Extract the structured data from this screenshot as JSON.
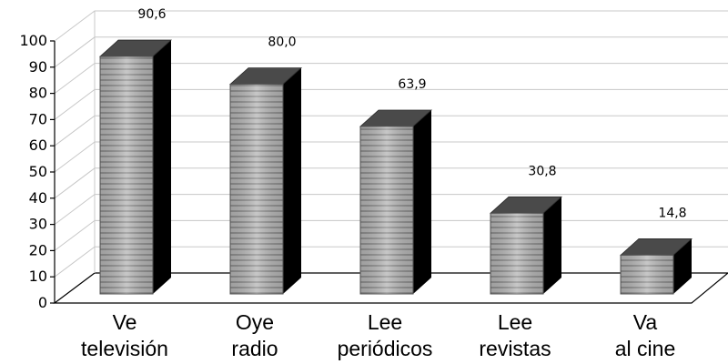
{
  "chart_data": {
    "type": "bar",
    "title": "",
    "xlabel": "",
    "ylabel": "",
    "ylim": [
      0,
      100
    ],
    "yticks": [
      0,
      10,
      20,
      30,
      40,
      50,
      60,
      70,
      80,
      90,
      100
    ],
    "grid": true,
    "style": "3d-column",
    "categories": [
      {
        "line1": "Ve",
        "line2": "televisión"
      },
      {
        "line1": "Oye",
        "line2": "radio"
      },
      {
        "line1": "Lee",
        "line2": "periódicos"
      },
      {
        "line1": "Lee",
        "line2": "revistas"
      },
      {
        "line1": "Va",
        "line2": "al cine"
      }
    ],
    "values": [
      90.6,
      80.0,
      63.9,
      30.8,
      14.8
    ],
    "value_labels": [
      "90,6",
      "80,0",
      "63,9",
      "30,8",
      "14,8"
    ],
    "colors": {
      "bar_front": "#a8a8a8",
      "bar_side": "#000000",
      "bar_top": "#4a4a4a",
      "grid": "#c8c8c8",
      "axis": "#000000"
    }
  }
}
